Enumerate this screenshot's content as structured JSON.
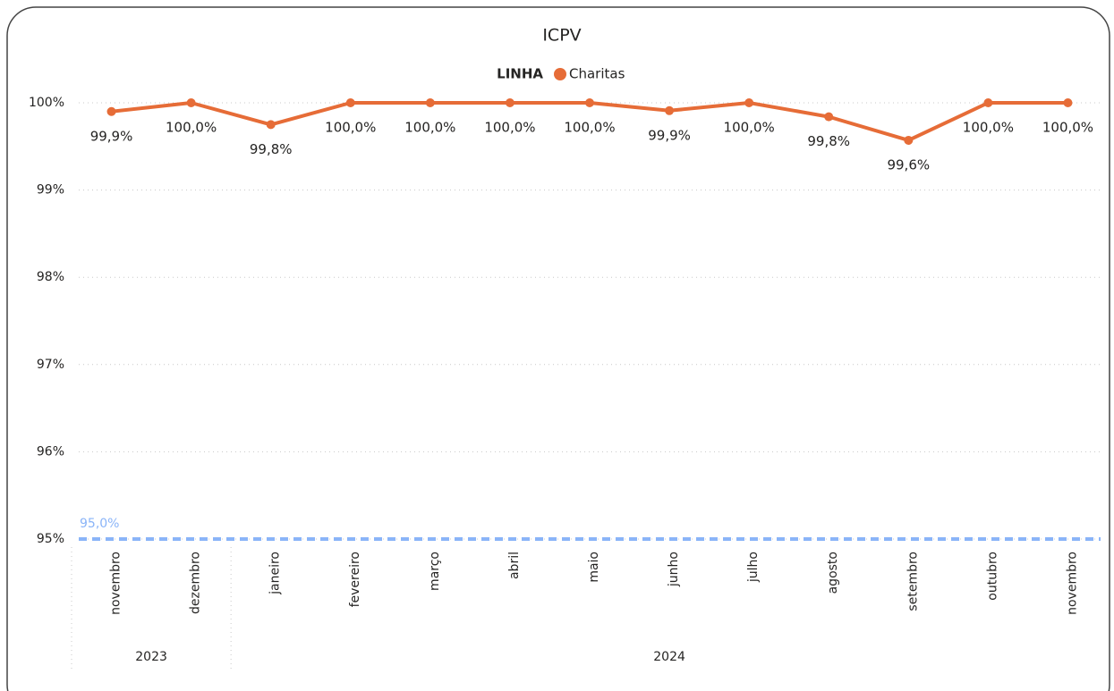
{
  "chart_data": {
    "type": "line",
    "title": "ICPV",
    "legend_title": "LINHA",
    "categories": [
      "novembro",
      "dezembro",
      "janeiro",
      "fevereiro",
      "março",
      "abril",
      "maio",
      "junho",
      "julho",
      "agosto",
      "setembro",
      "outubro",
      "novembro"
    ],
    "x_groups": [
      {
        "label": "2023",
        "count": 2
      },
      {
        "label": "2024",
        "count": 11
      }
    ],
    "series": [
      {
        "name": "Charitas",
        "color": "#e66c37",
        "values": [
          99.9,
          100,
          99.75,
          100,
          100,
          100,
          100,
          99.91,
          100,
          99.84,
          99.57,
          100,
          100
        ],
        "value_labels": [
          "99,9%",
          "100,0%",
          "99,8%",
          "100,0%",
          "100,0%",
          "100,0%",
          "100,0%",
          "99,9%",
          "100,0%",
          "99,8%",
          "99,6%",
          "100,0%",
          "100,0%"
        ]
      }
    ],
    "ylim": [
      95,
      100
    ],
    "yticks": [
      {
        "value": 95,
        "label": "95%"
      },
      {
        "value": 96,
        "label": "96%"
      },
      {
        "value": 97,
        "label": "97%"
      },
      {
        "value": 98,
        "label": "98%"
      },
      {
        "value": 99,
        "label": "99%"
      },
      {
        "value": 100,
        "label": "100%"
      }
    ],
    "grid": true,
    "reference_line": {
      "value": 95,
      "label": "95,0%",
      "color": "#8ab4f8"
    }
  }
}
